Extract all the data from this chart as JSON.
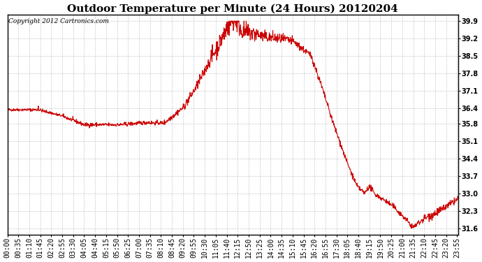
{
  "title": "Outdoor Temperature per Minute (24 Hours) 20120204",
  "copyright_text": "Copyright 2012 Cartronics.com",
  "line_color": "#cc0000",
  "background_color": "#ffffff",
  "grid_color": "#bbbbbb",
  "yticks": [
    31.6,
    32.3,
    33.0,
    33.7,
    34.4,
    35.1,
    35.8,
    36.4,
    37.1,
    37.8,
    38.5,
    39.2,
    39.9
  ],
  "ylim": [
    31.35,
    40.15
  ],
  "title_fontsize": 11,
  "tick_fontsize": 7,
  "copyright_fontsize": 6.5,
  "x_tick_interval": 35,
  "total_points": 1440
}
